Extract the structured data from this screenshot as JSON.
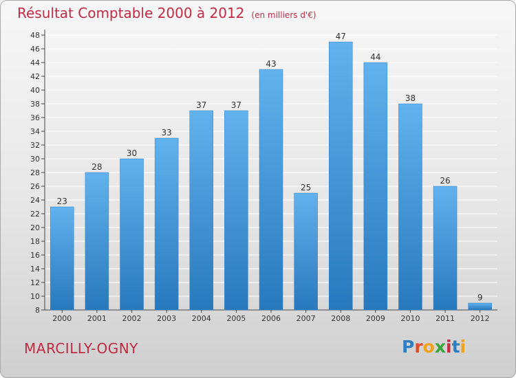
{
  "title": "Résultat Comptable 2000 à 2012",
  "subtitle": "(en milliers d'€)",
  "commune": "MARCILLY-OGNY",
  "brand": {
    "name": "Proxiti",
    "letters": [
      "P",
      "r",
      "o",
      "x",
      "i",
      "t",
      "i"
    ],
    "colors": [
      "#2e7ec4",
      "#e24a2c",
      "#f1a21b",
      "#3aa537",
      "#c22a43",
      "#2e7ec4",
      "#f1a21b"
    ]
  },
  "colors": {
    "bar_top": "#62b2ef",
    "bar_bottom": "#2878bd",
    "title": "#c22a43",
    "axis": "#444444"
  },
  "chart_data": {
    "type": "bar",
    "title": "Résultat Comptable 2000 à 2012",
    "ylabel": "en milliers d'€",
    "categories": [
      "2000",
      "2001",
      "2002",
      "2003",
      "2004",
      "2005",
      "2006",
      "2007",
      "2008",
      "2009",
      "2010",
      "2011",
      "2012"
    ],
    "values": [
      23,
      28,
      30,
      33,
      37,
      37,
      43,
      25,
      47,
      44,
      38,
      26,
      9
    ],
    "ylim": [
      8,
      48
    ],
    "ytick_step": 2,
    "grid": true
  }
}
